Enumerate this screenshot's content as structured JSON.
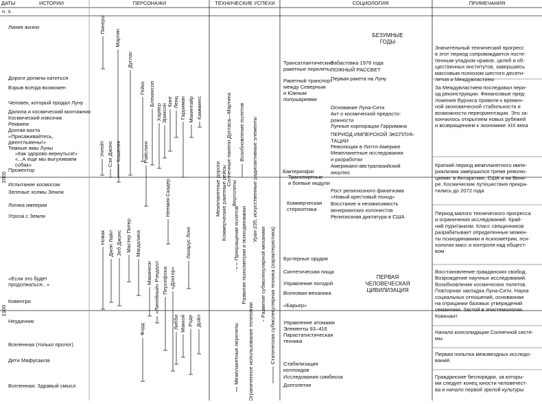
{
  "header": {
    "columns": [
      "ДАТЫ",
      "ИСТОРИИ",
      "ПЕРСОНАЖИ",
      "ТЕХНИЧЕСКИЕ УСПЕХИ",
      "СОЦИОЛОГИЯ",
      "ПРИМЕЧАНИЯ"
    ],
    "era": "н. э."
  },
  "dates": [
    "2000",
    "2100"
  ],
  "stories": [
    [
      "Линия жизни"
    ],
    [
      "Дороги должны катиться"
    ],
    [
      "Взрыв всегда возможен"
    ],
    [
      "Человек, который продал Луну"
    ],
    [
      "Далила и космический монтажник"
    ],
    [
      "Космический извозчик"
    ],
    [
      "Реквием"
    ],
    [
      "Долгая вахта"
    ],
    [
      "«Присаживайтесь,",
      "джентльмены!»"
    ],
    [
      "Темные ямы Луны"
    ],
    [
      "«Как здорово вернуться!»"
    ],
    [
      "«...А еще мы выгуливаем",
      "собак»"
    ],
    [
      "Прожектор"
    ],
    [
      "Испытание космосом"
    ],
    [
      "Зеленые холмы Земли"
    ],
    [
      "Логика империи"
    ],
    [
      "Угроза с Земли"
    ],
    [
      "«Если это будет",
      "продолжаться...»"
    ],
    [
      "Ковентри"
    ],
    [
      "Неудачник"
    ],
    [
      "Вселенная (только пролог)"
    ],
    [
      "Дети Мафусаила"
    ],
    [
      "Вселенная: Здравый смысл"
    ]
  ],
  "characters": [
    "Пинеро",
    "Мартин",
    "Дуглас",
    "Гейнс",
    "Блекинсоп",
    "Харпер",
    "Эриксон",
    "Кинг",
    "Ленц",
    "Гарриман",
    "Макинтайр",
    "Каммингс",
    "Унгейт",
    "Сэн Джонс",
    "Кошелек",
    "Райслинг",
    "Неемия Скадер",
    "Новак",
    "Джон Лайл",
    "Зеб Джонс",
    "Мастер Питер",
    "Магдалина",
    "Макиннон",
    "«Линейный» Рэндалл",
    "Персефона",
    "«Доктор»",
    "Форд",
    "Лазарус Лонг",
    "Либби",
    "Маккой",
    "Роде",
    "Дойл"
  ],
  "tech_vertical": [
    "Межпланетные дороги",
    "Коммерческие ракетные рейсы",
    "Солнечные панели Дугласа—Мартина",
    "Вертолеты",
    "Возобновление полетов",
    "Уран-235, искусственные радиоактивные элементы",
    "Прекращение полетов",
    "Развитие психометрии и психодинамики",
    "Межпланетные перелеты",
    "Ограниченное использование телепатии",
    "Развитие субмолекулярной механики",
    "Статическая субмолекулярная техника (характеристика)"
  ],
  "tech_items": [
    [
      "Трансатлантические",
      "ракетные перелеты"
    ],
    [
      "Ракетный транспорт",
      "между Северным",
      "и Южным",
      "полушариями"
    ],
    [
      "Бактериофаг"
    ],
    [
      "Транспортные",
      "и боевые модули"
    ],
    [
      "Коммерческая",
      "стереоптика"
    ],
    [
      "Бустерные орудия"
    ],
    [
      "Синтетическая пища"
    ],
    [
      "Управление погодой"
    ],
    [
      "Волновая механика"
    ],
    [
      "«Барьер»"
    ],
    [
      "Управление атомами",
      "Элементы 93–416"
    ],
    [
      "Парастатистическая",
      "техника"
    ],
    [
      "Стабилизация",
      "коллоидов"
    ],
    [
      "Исследования симбиоза"
    ],
    [
      "Долголетие"
    ]
  ],
  "sociology": [
    [
      "БЕЗУМНЫЕ",
      "ГОДЫ"
    ],
    [
      "Забастовка 1976 года"
    ],
    [
      "ЛОЖНЫЙ РАССВЕТ"
    ],
    [
      "Первая ракета на Луну"
    ],
    [
      "Основание Луна-Сити"
    ],
    [
      "Акт о космической предосто-",
      "рожности"
    ],
    [
      "Лунные корпорации Гарримана"
    ],
    [
      "ПЕРИОД ИМПЕРСКОЙ ЭКСПЛУА-",
      "ТАЦИИ"
    ],
    [
      "Революция в Литтл-Америке"
    ],
    [
      "Межпланетные исследования",
      "и разработки"
    ],
    [
      "Американо-австралазийский",
      "аншлюс"
    ],
    [
      "Рост религиозного фанатизма"
    ],
    [
      "«Новый крестовый поход»"
    ],
    [
      "Восстание и независимость",
      "венерианских колонистов"
    ],
    [
      "Религиозная диктатура в США"
    ],
    [
      "ПЕРВАЯ",
      "ЧЕЛОВЕЧЕСКАЯ",
      "ЦИВИЛИЗАЦИЯ"
    ]
  ],
  "notes": [
    [
      "Значительный технический прогресс",
      "в этот период сопровождается посте-",
      "пенным упадком нравов, целей и об-",
      "щественных институтов, завершаясь",
      "массовым психозом шестого десяти-",
      "летия и Междувластием"
    ],
    [
      "За Междувластием последовал пери-",
      "од реконструкции. Финансовые пред-",
      "ложения Вурхиса привели к времен-",
      "ной экономической стабильности и",
      "возможности переориентации. Это за-",
      "кончилось открытием новых рубежей",
      "и возвращением к экономике XIX века"
    ],
    [
      "Краткий период межпланетного импе-",
      "риализма завершился тремя револю-",
      "циями: в Антарктике, США и на Вене-",
      "ре. Космические путешествия прекра-",
      "тились до 2072 года"
    ],
    [
      "Период малого технического прогресса",
      "и ограничения исследований. Край-",
      "ний пуританизм. Класс священников",
      "разрабатывает определенные момен-",
      "ты психодинамики и психометрии, пси-",
      "хологии масс и контроля над общест-",
      "вом"
    ],
    [
      "Восстановление гражданских свобод.",
      "Возрождение научных исследований.",
      "Возобновление космических полетов.",
      "Повторная закладка Луна-Сити. Наука",
      "социальных отношений, основанная",
      "на отрицании базовых утверждений",
      "семантики. Застой в эпистемологии.",
      "Ковенант"
    ],
    [
      "Начало консолидации Солнечной систе-",
      "мы."
    ],
    [
      "Первая попытка межзвездных исследо-",
      "ваний."
    ],
    [
      "Гражданские беспорядки, за которы-",
      "ми следует конец юности человечест-",
      "ва и начало первой зрелой культуры"
    ]
  ]
}
